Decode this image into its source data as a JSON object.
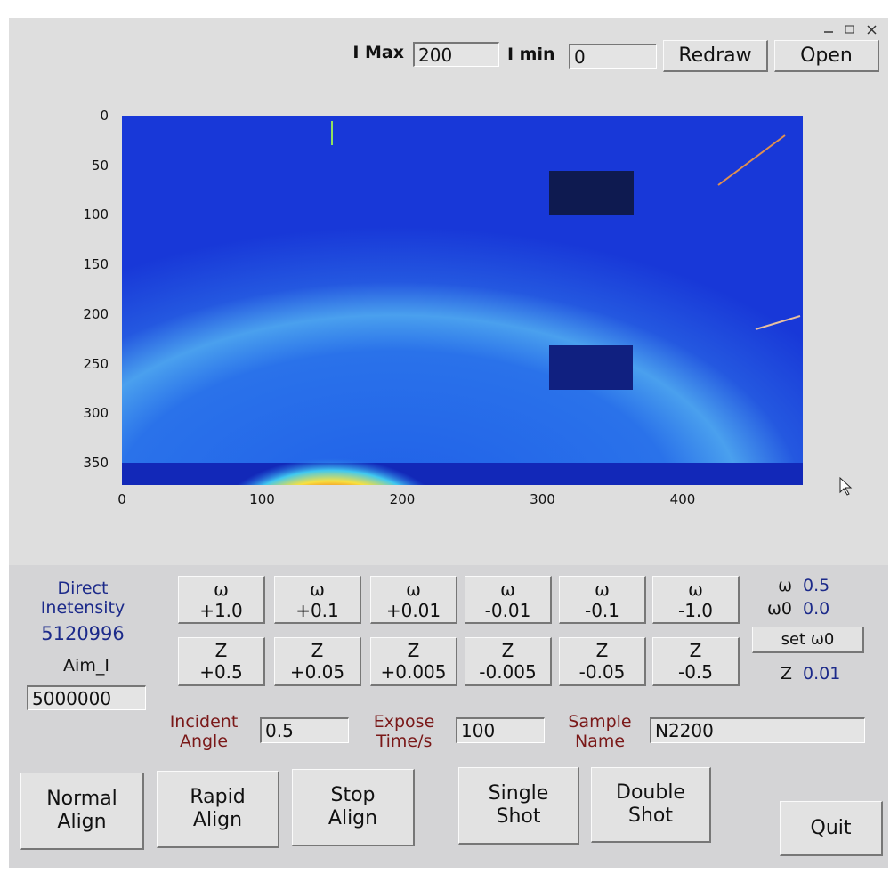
{
  "toolbar": {
    "imax_label": "I Max",
    "imax": "200",
    "imin_label": "I min",
    "imin": "0",
    "redraw": "Redraw",
    "open": "Open"
  },
  "plot": {
    "xticks": [
      0,
      100,
      200,
      300,
      400
    ],
    "yticks": [
      0,
      50,
      100,
      150,
      200,
      250,
      300,
      350
    ]
  },
  "intensity": {
    "label_line1": "Direct",
    "label_line2": "Inetensity",
    "value": "5120996",
    "aim_label": "Aim_I",
    "aim_value": "5000000"
  },
  "omega_buttons": [
    {
      "symbol": "ω",
      "step": "+1.0"
    },
    {
      "symbol": "ω",
      "step": "+0.1"
    },
    {
      "symbol": "ω",
      "step": "+0.01"
    },
    {
      "symbol": "ω",
      "step": "-0.01"
    },
    {
      "symbol": "ω",
      "step": "-0.1"
    },
    {
      "symbol": "ω",
      "step": "-1.0"
    }
  ],
  "z_buttons": [
    {
      "symbol": "Z",
      "step": "+0.5"
    },
    {
      "symbol": "Z",
      "step": "+0.05"
    },
    {
      "symbol": "Z",
      "step": "+0.005"
    },
    {
      "symbol": "Z",
      "step": "-0.005"
    },
    {
      "symbol": "Z",
      "step": "-0.05"
    },
    {
      "symbol": "Z",
      "step": "-0.5"
    }
  ],
  "status": {
    "omega_label": "ω",
    "omega": "0.5",
    "omega0_label": "ω0",
    "omega0": "0.0",
    "set_omega0": "set ω0",
    "z_label": "Z",
    "z": "0.01"
  },
  "params": [
    {
      "line1": "Incident",
      "line2": "Angle",
      "value": "0.5"
    },
    {
      "line1": "Expose",
      "line2": "Time/s",
      "value": "100"
    },
    {
      "line1": "Sample",
      "line2": "Name",
      "value": "N2200"
    }
  ],
  "actions": [
    {
      "line1": "Normal",
      "line2": "Align"
    },
    {
      "line1": "Rapid",
      "line2": "Align"
    },
    {
      "line1": "Stop",
      "line2": "Align"
    },
    {
      "line1": "Single",
      "line2": "Shot"
    },
    {
      "line1": "Double",
      "line2": "Shot"
    }
  ],
  "quit": "Quit"
}
